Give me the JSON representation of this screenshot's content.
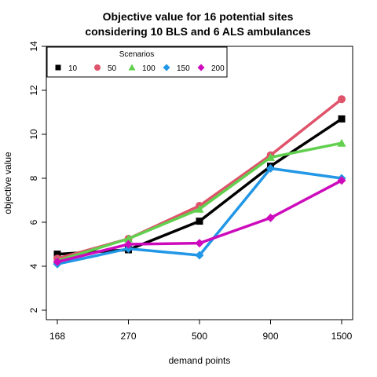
{
  "chart_data": {
    "type": "line",
    "title": "Objective value for 16 potential sites",
    "subtitle": "considering 10 BLS and 6 ALS ambulances",
    "xlabel": "demand points",
    "ylabel": "objective value",
    "categories": [
      "168",
      "270",
      "500",
      "900",
      "1500"
    ],
    "ylim": [
      2,
      14
    ],
    "yticks": [
      2,
      4,
      6,
      8,
      10,
      12,
      14
    ],
    "grid": false,
    "legend": {
      "title": "Scenarios",
      "position": "top-left",
      "orientation": "horizontal"
    },
    "series": [
      {
        "name": "10",
        "color": "#000000",
        "marker": "square",
        "values": [
          4.55,
          4.75,
          6.05,
          8.55,
          10.7
        ]
      },
      {
        "name": "50",
        "color": "#DF536B",
        "marker": "circle",
        "values": [
          4.35,
          5.25,
          6.75,
          9.05,
          11.6
        ]
      },
      {
        "name": "100",
        "color": "#61D04F",
        "marker": "triangle",
        "values": [
          4.25,
          5.25,
          6.6,
          8.95,
          9.6
        ]
      },
      {
        "name": "150",
        "color": "#2297E6",
        "marker": "diamond",
        "values": [
          4.1,
          4.8,
          4.5,
          8.45,
          8.0
        ]
      },
      {
        "name": "200",
        "color": "#CD0BBC",
        "marker": "diamond",
        "values": [
          4.2,
          5.0,
          5.05,
          6.2,
          7.9
        ]
      }
    ]
  }
}
